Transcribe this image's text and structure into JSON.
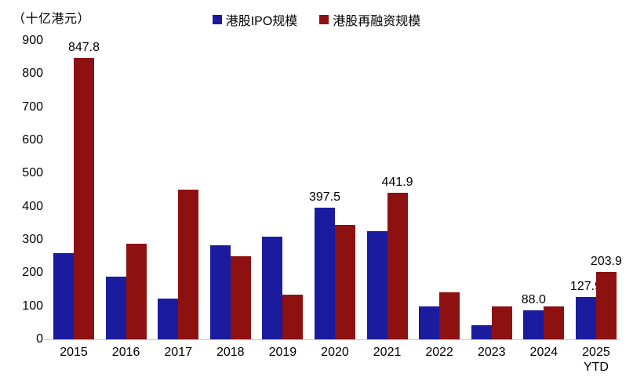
{
  "chart_data": {
    "type": "bar",
    "title": "",
    "unit_label": "（十亿港元）",
    "xlabel": "",
    "ylabel": "",
    "ylim": [
      0,
      900
    ],
    "yticks": [
      900,
      800,
      700,
      600,
      500,
      400,
      300,
      200,
      100,
      0
    ],
    "grid": false,
    "legend_position": "top-center",
    "categories": [
      "2015",
      "2016",
      "2017",
      "2018",
      "2019",
      "2020",
      "2021",
      "2022",
      "2023",
      "2024",
      "2025\nYTD"
    ],
    "series": [
      {
        "name": "港股IPO规模",
        "color": "#1b1b9e",
        "values": [
          261,
          190,
          123,
          283,
          310,
          397.5,
          325,
          100,
          42,
          88,
          127.9
        ],
        "labels": [
          "",
          "",
          "",
          "",
          "",
          "397.5",
          "",
          "",
          "",
          "88.0",
          "127.9"
        ]
      },
      {
        "name": "港股再融资规模",
        "color": "#8e1111",
        "values": [
          847.8,
          288,
          451,
          250,
          135,
          344,
          441.9,
          142,
          100,
          100,
          203.9
        ],
        "labels": [
          "847.8",
          "",
          "",
          "",
          "",
          "",
          "441.9",
          "",
          "",
          "",
          "203.9"
        ]
      }
    ],
    "colors": {
      "axis_line": "#c9c9c9",
      "text": "#000000",
      "background": "#ffffff"
    }
  }
}
